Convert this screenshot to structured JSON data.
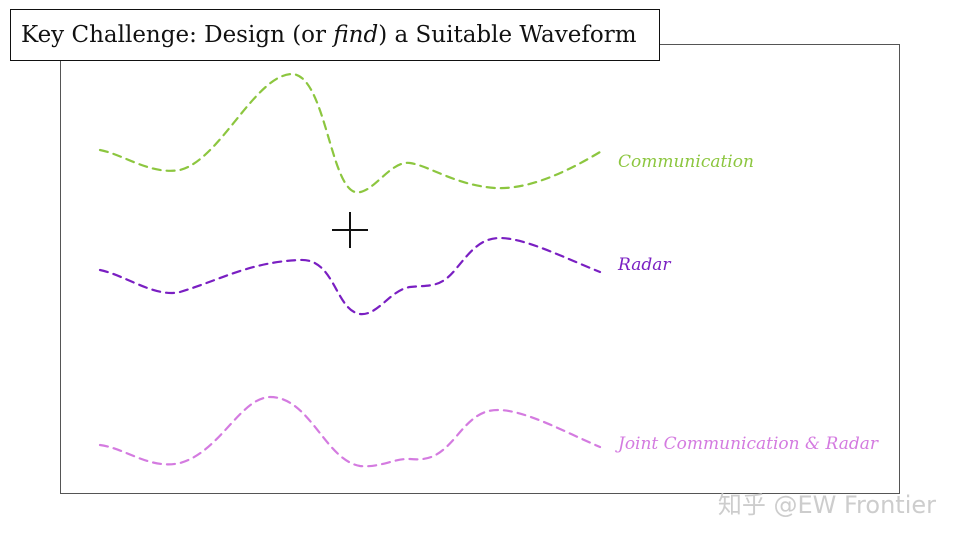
{
  "title": {
    "before": "Key Challenge: Design (or ",
    "emphasis": "find",
    "after": ") a Suitable Waveform"
  },
  "operator": "+",
  "labels": {
    "communication": "Communication",
    "radar": "Radar",
    "joint": "Joint Communication & Radar"
  },
  "colors": {
    "communication": "#8cc63f",
    "radar": "#7a1fc2",
    "joint": "#d47be0"
  },
  "watermark": "知乎 @EW Frontier"
}
